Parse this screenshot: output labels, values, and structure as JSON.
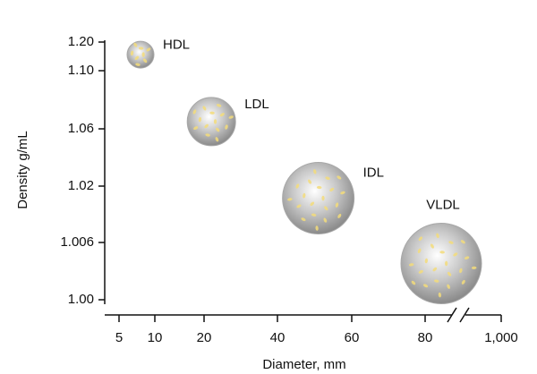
{
  "chart_data": {
    "type": "bubble",
    "xlabel": "Diameter, mm",
    "ylabel": "Density g/mL",
    "labels": [
      "HDL",
      "LDL",
      "IDL",
      "VLDL"
    ],
    "x": [
      8,
      22,
      51,
      275
    ],
    "y": [
      1.156,
      1.065,
      1.017,
      1.0038
    ],
    "sizes": [
      30,
      54,
      80,
      90
    ],
    "color": "#a8a8a8",
    "xticks": [
      5,
      10,
      20,
      40,
      60,
      80,
      {
        "value": 1000,
        "label": "1,000"
      }
    ],
    "yticks": [
      {
        "value": 1.0,
        "label": "1.00"
      },
      1.006,
      1.02,
      1.06,
      {
        "value": 1.1,
        "label": "1.10"
      },
      {
        "value": 1.2,
        "label": "1.20"
      }
    ],
    "xlim": [
      5,
      1000
    ],
    "ylim": [
      1.0,
      1.2
    ]
  }
}
